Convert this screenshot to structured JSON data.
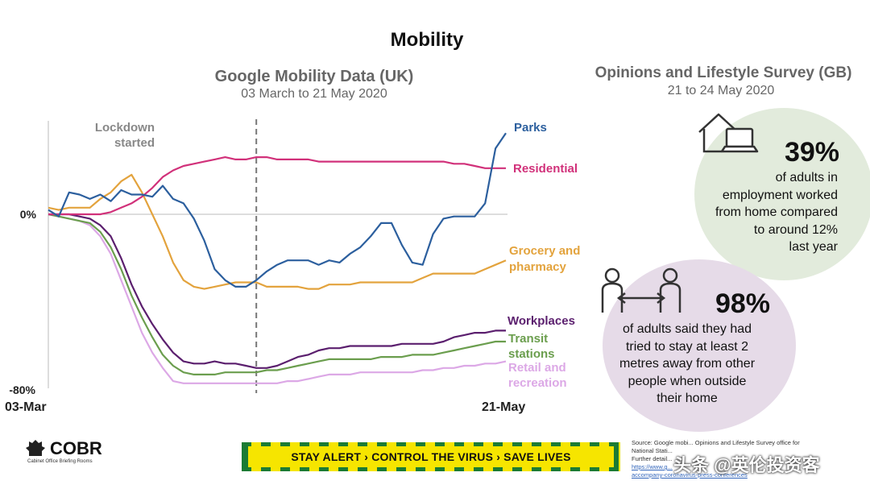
{
  "page_title": "Mobility",
  "chart_title": "Google Mobility Data (UK)",
  "chart_subtitle": "03 March to 21 May 2020",
  "lockdown_label": [
    "Lockdown",
    "started"
  ],
  "survey_title": "Opinions and Lifestyle Survey (GB)",
  "survey_subtitle": "21 to 24 May 2020",
  "stat1": {
    "percent": "39%",
    "lines": [
      "of adults in",
      "employment worked",
      "from home compared",
      "to around 12%",
      "last year"
    ]
  },
  "stat2": {
    "percent": "98%",
    "lines": [
      "of adults said they had",
      "tried to stay at least 2",
      "metres away from other",
      "people when outside",
      "their home"
    ]
  },
  "icons": [
    "house-laptop-icon",
    "two-people-distance-icon"
  ],
  "footer": {
    "logo_text": "COBR",
    "logo_subtext": "Cabinet Office Briefing Rooms",
    "banner_text": "STAY ALERT › CONTROL THE VIRUS › SAVE LIVES",
    "source_lines": [
      "Source: Google mobi... Opinions and Lifestyle Survey office for",
      "National Stati...",
      "Further detail..."
    ],
    "source_link_lines": [
      "https://www.g...",
      "accompany-coronavirus-press-conferences"
    ],
    "watermark": "头条 @英伦投资客"
  },
  "colors": {
    "parks": "#2c5f9e",
    "residential": "#d1317a",
    "grocery": "#e3a33d",
    "workplaces": "#5b1f6e",
    "transit": "#6b9e4e",
    "retail": "#dca8e6",
    "banner_green": "#1b7b34",
    "banner_yellow": "#f6e500",
    "circle_green": "#e2ebdc",
    "circle_purple": "#e6dbe8"
  },
  "chart_data": {
    "type": "line",
    "x_labels": [
      "03-Mar",
      "21-May"
    ],
    "y_ticks": [
      "0%",
      "-80%"
    ],
    "ylim": [
      -80,
      40
    ],
    "event_line": {
      "date_index": 20,
      "label": "Lockdown started"
    },
    "series": [
      {
        "name": "Parks",
        "color": "#2c5f9e",
        "values": [
          2,
          -1,
          10,
          9,
          7,
          9,
          6,
          11,
          9,
          9,
          8,
          13,
          7,
          5,
          -2,
          -12,
          -25,
          -30,
          -33,
          -33,
          -30,
          -26,
          -23,
          -21,
          -21,
          -21,
          -23,
          -21,
          -22,
          -18,
          -15,
          -10,
          -4,
          -4,
          -14,
          -22,
          -23,
          -9,
          -2,
          -1,
          -1,
          -1,
          5,
          30,
          37
        ]
      },
      {
        "name": "Residential",
        "color": "#d1317a",
        "values": [
          0,
          0,
          0,
          0,
          0,
          0,
          1,
          3,
          5,
          8,
          12,
          17,
          20,
          22,
          23,
          24,
          25,
          26,
          25,
          25,
          26,
          26,
          25,
          25,
          25,
          25,
          24,
          24,
          24,
          24,
          24,
          24,
          24,
          24,
          24,
          24,
          24,
          24,
          24,
          23,
          23,
          22,
          21,
          21,
          21
        ]
      },
      {
        "name": "Grocery and pharmacy",
        "color": "#e3a33d",
        "values": [
          3,
          2,
          3,
          3,
          3,
          7,
          10,
          15,
          18,
          10,
          0,
          -10,
          -22,
          -30,
          -33,
          -34,
          -33,
          -32,
          -31,
          -31,
          -31,
          -33,
          -33,
          -33,
          -33,
          -34,
          -34,
          -32,
          -32,
          -32,
          -31,
          -31,
          -31,
          -31,
          -31,
          -31,
          -29,
          -27,
          -27,
          -27,
          -27,
          -27,
          -25,
          -23,
          -21
        ]
      },
      {
        "name": "Workplaces",
        "color": "#5b1f6e",
        "values": [
          0,
          0,
          0,
          -1,
          -2,
          -5,
          -10,
          -20,
          -32,
          -42,
          -50,
          -57,
          -63,
          -67,
          -68,
          -68,
          -67,
          -68,
          -68,
          -69,
          -70,
          -70,
          -69,
          -67,
          -65,
          -64,
          -62,
          -61,
          -61,
          -60,
          -60,
          -60,
          -60,
          -60,
          -59,
          -59,
          -59,
          -59,
          -58,
          -56,
          -55,
          -54,
          -54,
          -53,
          -53
        ]
      },
      {
        "name": "Transit stations",
        "color": "#6b9e4e",
        "values": [
          0,
          -1,
          -2,
          -3,
          -4,
          -8,
          -15,
          -25,
          -37,
          -47,
          -56,
          -64,
          -69,
          -72,
          -73,
          -73,
          -73,
          -72,
          -72,
          -72,
          -72,
          -71,
          -71,
          -70,
          -69,
          -68,
          -67,
          -66,
          -66,
          -66,
          -66,
          -66,
          -65,
          -65,
          -65,
          -64,
          -64,
          -64,
          -63,
          -62,
          -61,
          -60,
          -59,
          -58,
          -58
        ]
      },
      {
        "name": "Retail and recreation",
        "color": "#dca8e6",
        "values": [
          0,
          -1,
          -2,
          -3,
          -5,
          -10,
          -18,
          -30,
          -42,
          -54,
          -63,
          -70,
          -76,
          -77,
          -77,
          -77,
          -77,
          -77,
          -77,
          -77,
          -77,
          -77,
          -77,
          -76,
          -76,
          -75,
          -74,
          -73,
          -73,
          -73,
          -72,
          -72,
          -72,
          -72,
          -72,
          -72,
          -71,
          -71,
          -70,
          -70,
          -69,
          -69,
          -68,
          -68,
          -67
        ]
      }
    ]
  }
}
